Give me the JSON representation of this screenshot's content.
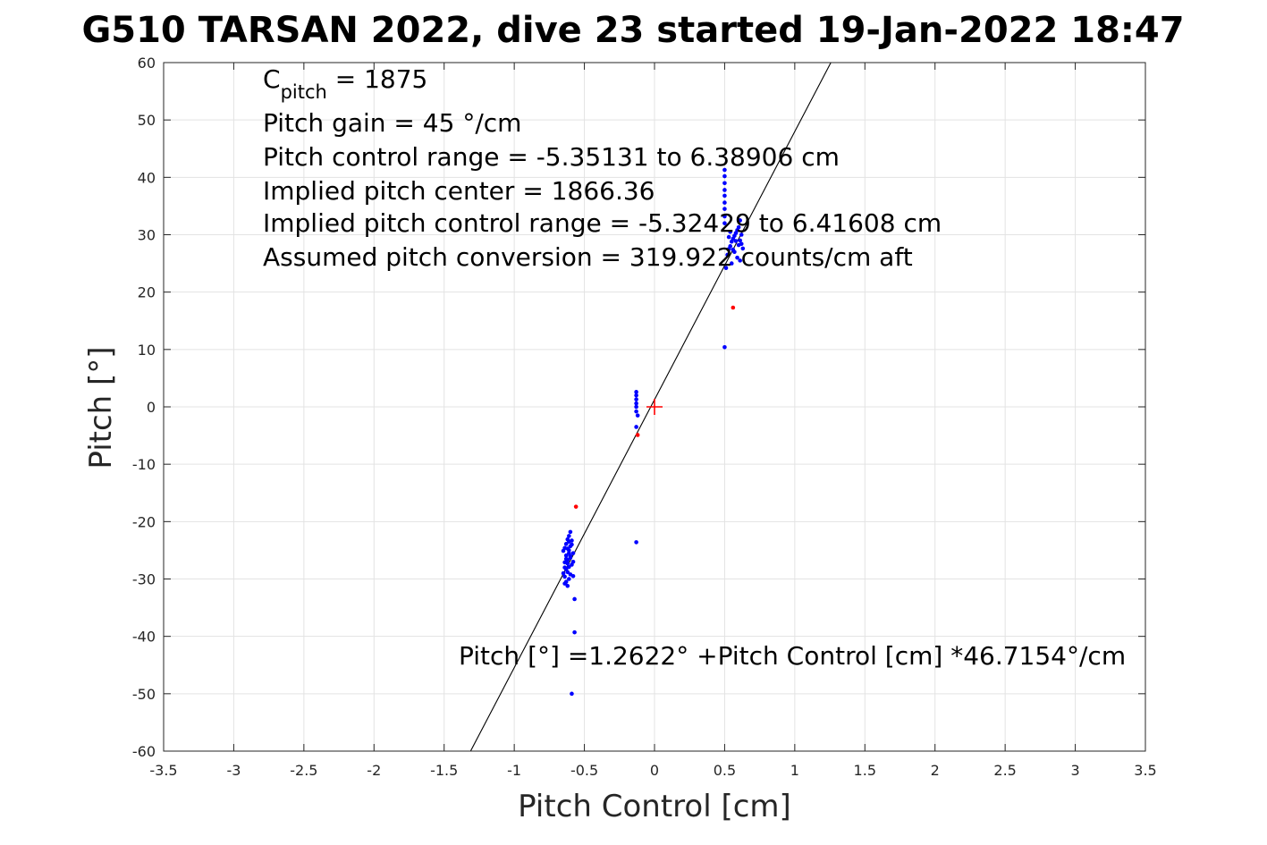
{
  "chart_data": {
    "type": "scatter",
    "title": "G510 TARSAN 2022, dive 23 started 19-Jan-2022 18:47",
    "xlabel": "Pitch Control [cm]",
    "ylabel": "Pitch [°]",
    "xlim": [
      -3.5,
      3.5
    ],
    "ylim": [
      -60,
      60
    ],
    "xticks": [
      "-3.5",
      "-3",
      "-2.5",
      "-2",
      "-1.5",
      "-1",
      "-0.5",
      "0",
      "0.5",
      "1",
      "1.5",
      "2",
      "2.5",
      "3",
      "3.5"
    ],
    "yticks": [
      "-60",
      "-50",
      "-40",
      "-30",
      "-20",
      "-10",
      "0",
      "10",
      "20",
      "30",
      "40",
      "50",
      "60"
    ],
    "grid": true,
    "info_lines": {
      "cpitch_prefix": "C",
      "cpitch_sub": "pitch",
      "cpitch_value": " = 1875",
      "gain": "Pitch gain = 45 °/cm",
      "range": "Pitch control range = -5.35131 to 6.38906 cm",
      "center": "Implied pitch center = 1866.36",
      "implied_range": "Implied pitch control range = -5.32429 to 6.41608 cm",
      "conversion": "Assumed pitch conversion = 319.922 counts/cm aft"
    },
    "fit_label": "Pitch [°] =1.2622° +Pitch Control [cm] *46.7154°/cm",
    "fit": {
      "intercept": 1.2622,
      "slope": 46.7154,
      "color": "#000000"
    },
    "center_marker": {
      "x": 0,
      "y": 0,
      "color": "#ff0000"
    },
    "series": [
      {
        "color": "#0000ff",
        "points": [
          [
            -0.62,
            -31.2
          ],
          [
            -0.63,
            -30.5
          ],
          [
            -0.61,
            -30.0
          ],
          [
            -0.64,
            -29.6
          ],
          [
            -0.6,
            -29.2
          ],
          [
            -0.62,
            -28.8
          ],
          [
            -0.63,
            -28.3
          ],
          [
            -0.61,
            -27.9
          ],
          [
            -0.59,
            -27.5
          ],
          [
            -0.64,
            -27.1
          ],
          [
            -0.62,
            -26.7
          ],
          [
            -0.6,
            -26.3
          ],
          [
            -0.63,
            -25.9
          ],
          [
            -0.61,
            -25.5
          ],
          [
            -0.65,
            -25.1
          ],
          [
            -0.62,
            -24.7
          ],
          [
            -0.6,
            -24.3
          ],
          [
            -0.63,
            -23.9
          ],
          [
            -0.61,
            -23.5
          ],
          [
            -0.62,
            -23.1
          ],
          [
            -0.64,
            -28.0
          ],
          [
            -0.6,
            -26.0
          ],
          [
            -0.59,
            -24.0
          ],
          [
            -0.65,
            -29.0
          ],
          [
            -0.58,
            -25.5
          ],
          [
            -0.58,
            -27.0
          ],
          [
            -0.58,
            -29.5
          ],
          [
            -0.61,
            -22.5
          ],
          [
            -0.6,
            -21.8
          ],
          [
            -0.64,
            -30.8
          ],
          [
            -0.62,
            -27.3
          ],
          [
            -0.63,
            -26.5
          ],
          [
            -0.61,
            -25.0
          ],
          [
            -0.59,
            -23.3
          ],
          [
            -0.64,
            -24.6
          ],
          [
            -0.57,
            -33.5
          ],
          [
            -0.57,
            -39.3
          ],
          [
            -0.59,
            -50.0
          ],
          [
            -0.13,
            -23.6
          ],
          [
            -0.13,
            -3.5
          ],
          [
            -0.13,
            -0.8
          ],
          [
            -0.13,
            0.0
          ],
          [
            -0.13,
            0.6
          ],
          [
            -0.13,
            1.3
          ],
          [
            -0.13,
            2.0
          ],
          [
            -0.13,
            2.6
          ],
          [
            -0.12,
            -1.5
          ],
          [
            0.5,
            10.4
          ],
          [
            0.51,
            24.2
          ],
          [
            0.52,
            26.5
          ],
          [
            0.53,
            27.5
          ],
          [
            0.54,
            28.0
          ],
          [
            0.55,
            28.8
          ],
          [
            0.56,
            29.3
          ],
          [
            0.57,
            29.8
          ],
          [
            0.58,
            30.3
          ],
          [
            0.59,
            30.8
          ],
          [
            0.6,
            31.3
          ],
          [
            0.61,
            29.0
          ],
          [
            0.62,
            28.4
          ],
          [
            0.63,
            27.6
          ],
          [
            0.57,
            27.0
          ],
          [
            0.59,
            26.0
          ],
          [
            0.61,
            25.5
          ],
          [
            0.6,
            28.2
          ],
          [
            0.58,
            28.9
          ],
          [
            0.62,
            30.0
          ],
          [
            0.56,
            27.4
          ],
          [
            0.55,
            25.0
          ],
          [
            0.53,
            29.6
          ],
          [
            0.54,
            30.5
          ],
          [
            0.5,
            32.0
          ],
          [
            0.5,
            33.2
          ],
          [
            0.5,
            34.5
          ],
          [
            0.5,
            35.6
          ],
          [
            0.5,
            36.8
          ],
          [
            0.5,
            37.8
          ],
          [
            0.5,
            39.0
          ],
          [
            0.5,
            40.2
          ],
          [
            0.5,
            41.3
          ],
          [
            0.61,
            32.5
          ]
        ]
      },
      {
        "color": "#ff0000",
        "points": [
          [
            0.56,
            17.3
          ],
          [
            -0.56,
            -17.4
          ],
          [
            -0.12,
            -4.9
          ]
        ]
      }
    ]
  }
}
